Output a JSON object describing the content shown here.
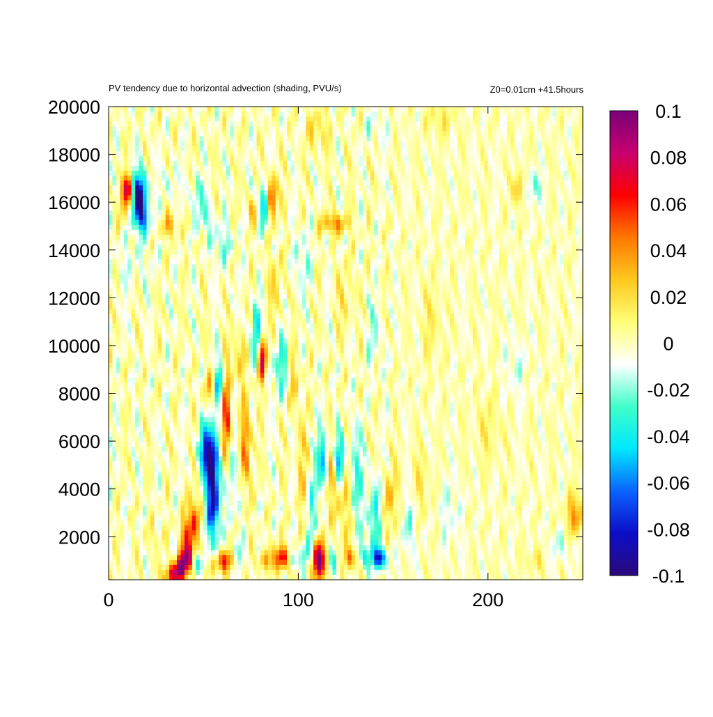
{
  "chart_data": {
    "type": "heatmap",
    "title": "PV tendency due to horizontal advection (shading, PVU/s)",
    "subtitle": "Z0=0.01cm   +41.5hours",
    "xlabel": "",
    "ylabel": "",
    "xlim": [
      0,
      250
    ],
    "ylim": [
      200,
      20000
    ],
    "xticks": [
      "0",
      "100",
      "200"
    ],
    "yticks": [
      "2000",
      "4000",
      "6000",
      "8000",
      "10000",
      "12000",
      "14000",
      "16000",
      "18000",
      "20000"
    ],
    "colorbar": {
      "range": [
        -0.1,
        0.1
      ],
      "ticks": [
        "0.1",
        "0.08",
        "0.06",
        "0.04",
        "0.02",
        "0",
        "-0.02",
        "-0.04",
        "-0.06",
        "-0.08",
        "-0.1"
      ],
      "colors": [
        "#2a0a7a",
        "#0c0cc8",
        "#0a64ff",
        "#00e8ff",
        "#3fffc8",
        "#ffffff",
        "#ffff78",
        "#ffc81e",
        "#ff7800",
        "#ff0000",
        "#c8006e",
        "#780078"
      ]
    },
    "grid": false,
    "blobs": [
      {
        "x": 10,
        "y": 16500,
        "sx": 2,
        "sy": 450,
        "v": 0.08
      },
      {
        "x": 16,
        "y": 16200,
        "sx": 3,
        "sy": 700,
        "v": -0.1
      },
      {
        "x": 18,
        "y": 15200,
        "sx": 2.5,
        "sy": 400,
        "v": -0.04
      },
      {
        "x": 8,
        "y": 15800,
        "sx": 3,
        "sy": 600,
        "v": 0.015
      },
      {
        "x": 32,
        "y": 15000,
        "sx": 3,
        "sy": 350,
        "v": 0.03
      },
      {
        "x": 33,
        "y": 16800,
        "sx": 2.5,
        "sy": 500,
        "v": -0.015
      },
      {
        "x": 47,
        "y": 16300,
        "sx": 2,
        "sy": 500,
        "v": -0.03
      },
      {
        "x": 82,
        "y": 15900,
        "sx": 2,
        "sy": 600,
        "v": -0.06
      },
      {
        "x": 86,
        "y": 16200,
        "sx": 1.8,
        "sy": 600,
        "v": 0.07
      },
      {
        "x": 76,
        "y": 15700,
        "sx": 2,
        "sy": 400,
        "v": 0.03
      },
      {
        "x": 119,
        "y": 15100,
        "sx": 5,
        "sy": 300,
        "v": 0.04
      },
      {
        "x": 110,
        "y": 19000,
        "sx": 4,
        "sy": 600,
        "v": 0.02
      },
      {
        "x": 216,
        "y": 16600,
        "sx": 2,
        "sy": 500,
        "v": 0.03
      },
      {
        "x": 224,
        "y": 16600,
        "sx": 2.5,
        "sy": 500,
        "v": -0.025
      },
      {
        "x": 51,
        "y": 15300,
        "sx": 3,
        "sy": 500,
        "v": -0.02
      },
      {
        "x": 60,
        "y": 14200,
        "sx": 4,
        "sy": 600,
        "v": -0.02
      },
      {
        "x": 12,
        "y": 13500,
        "sx": 8,
        "sy": 900,
        "v": -0.008
      },
      {
        "x": 140,
        "y": 19200,
        "sx": 4,
        "sy": 500,
        "v": -0.012
      },
      {
        "x": 175,
        "y": 19500,
        "sx": 5,
        "sy": 500,
        "v": 0.015
      },
      {
        "x": 81,
        "y": 9500,
        "sx": 1.5,
        "sy": 700,
        "v": 0.08
      },
      {
        "x": 78,
        "y": 10500,
        "sx": 2,
        "sy": 800,
        "v": -0.05
      },
      {
        "x": 91,
        "y": 9000,
        "sx": 2.5,
        "sy": 900,
        "v": -0.04
      },
      {
        "x": 68,
        "y": 9500,
        "sx": 3,
        "sy": 800,
        "v": 0.02
      },
      {
        "x": 96,
        "y": 8500,
        "sx": 3,
        "sy": 900,
        "v": 0.02
      },
      {
        "x": 55,
        "y": 4200,
        "sx": 2.5,
        "sy": 1600,
        "v": -0.1
      },
      {
        "x": 51,
        "y": 5600,
        "sx": 2.5,
        "sy": 700,
        "v": -0.06
      },
      {
        "x": 62,
        "y": 6800,
        "sx": 1.8,
        "sy": 1300,
        "v": 0.07
      },
      {
        "x": 58,
        "y": 8400,
        "sx": 2,
        "sy": 700,
        "v": -0.05
      },
      {
        "x": 72,
        "y": 5800,
        "sx": 2,
        "sy": 1300,
        "v": 0.05
      },
      {
        "x": 66,
        "y": 5000,
        "sx": 2.5,
        "sy": 1500,
        "v": -0.025
      },
      {
        "x": 54,
        "y": 8200,
        "sx": 2.5,
        "sy": 600,
        "v": 0.03
      },
      {
        "x": 45,
        "y": 2600,
        "sx": 2,
        "sy": 800,
        "v": 0.05
      },
      {
        "x": 41,
        "y": 2000,
        "sx": 2.5,
        "sy": 700,
        "v": 0.04
      },
      {
        "x": 38,
        "y": 700,
        "sx": 2,
        "sy": 350,
        "v": 0.1
      },
      {
        "x": 42,
        "y": 1100,
        "sx": 2,
        "sy": 400,
        "v": 0.07
      },
      {
        "x": 33,
        "y": 400,
        "sx": 2.5,
        "sy": 300,
        "v": 0.07
      },
      {
        "x": 48,
        "y": 900,
        "sx": 2.5,
        "sy": 300,
        "v": -0.035
      },
      {
        "x": 62,
        "y": 1000,
        "sx": 3,
        "sy": 300,
        "v": 0.06
      },
      {
        "x": 55,
        "y": 800,
        "sx": 2,
        "sy": 350,
        "v": 0.04
      },
      {
        "x": 68,
        "y": 1200,
        "sx": 2.5,
        "sy": 400,
        "v": -0.02
      },
      {
        "x": 91,
        "y": 1100,
        "sx": 2.5,
        "sy": 350,
        "v": 0.08
      },
      {
        "x": 82,
        "y": 1000,
        "sx": 2,
        "sy": 300,
        "v": 0.04
      },
      {
        "x": 97,
        "y": 1000,
        "sx": 2,
        "sy": 300,
        "v": -0.025
      },
      {
        "x": 111,
        "y": 1000,
        "sx": 2.5,
        "sy": 550,
        "v": 0.1
      },
      {
        "x": 104,
        "y": 1300,
        "sx": 2,
        "sy": 400,
        "v": -0.03
      },
      {
        "x": 119,
        "y": 1000,
        "sx": 2,
        "sy": 400,
        "v": -0.035
      },
      {
        "x": 127,
        "y": 1100,
        "sx": 2,
        "sy": 350,
        "v": 0.05
      },
      {
        "x": 143,
        "y": 1100,
        "sx": 2.5,
        "sy": 300,
        "v": -0.08
      },
      {
        "x": 135,
        "y": 1200,
        "sx": 2.5,
        "sy": 350,
        "v": -0.03
      },
      {
        "x": 113,
        "y": 5200,
        "sx": 2,
        "sy": 900,
        "v": -0.05
      },
      {
        "x": 122,
        "y": 5300,
        "sx": 2,
        "sy": 700,
        "v": -0.05
      },
      {
        "x": 117,
        "y": 4200,
        "sx": 2,
        "sy": 1200,
        "v": 0.03
      },
      {
        "x": 125,
        "y": 3500,
        "sx": 2,
        "sy": 1400,
        "v": 0.03
      },
      {
        "x": 108,
        "y": 3200,
        "sx": 2,
        "sy": 1300,
        "v": -0.025
      },
      {
        "x": 130,
        "y": 4500,
        "sx": 2.5,
        "sy": 1500,
        "v": -0.03
      },
      {
        "x": 102,
        "y": 5000,
        "sx": 2,
        "sy": 1500,
        "v": 0.02
      },
      {
        "x": 140,
        "y": 2800,
        "sx": 3,
        "sy": 1200,
        "v": -0.03
      },
      {
        "x": 149,
        "y": 3600,
        "sx": 3,
        "sy": 1000,
        "v": 0.025
      },
      {
        "x": 158,
        "y": 2500,
        "sx": 3,
        "sy": 900,
        "v": -0.02
      },
      {
        "x": 165,
        "y": 4200,
        "sx": 3,
        "sy": 1000,
        "v": 0.015
      },
      {
        "x": 180,
        "y": 3000,
        "sx": 4,
        "sy": 1000,
        "v": -0.012
      },
      {
        "x": 246,
        "y": 2900,
        "sx": 3,
        "sy": 600,
        "v": 0.04
      },
      {
        "x": 238,
        "y": 1600,
        "sx": 4,
        "sy": 400,
        "v": -0.015
      },
      {
        "x": 224,
        "y": 1000,
        "sx": 3,
        "sy": 350,
        "v": 0.015
      },
      {
        "x": 200,
        "y": 6500,
        "sx": 5,
        "sy": 1000,
        "v": 0.012
      },
      {
        "x": 215,
        "y": 9000,
        "sx": 4,
        "sy": 900,
        "v": -0.012
      },
      {
        "x": 170,
        "y": 11000,
        "sx": 4,
        "sy": 1200,
        "v": 0.012
      },
      {
        "x": 88,
        "y": 12500,
        "sx": 3,
        "sy": 900,
        "v": 0.018
      },
      {
        "x": 102,
        "y": 13500,
        "sx": 3,
        "sy": 900,
        "v": -0.018
      },
      {
        "x": 125,
        "y": 12000,
        "sx": 3,
        "sy": 1000,
        "v": 0.015
      },
      {
        "x": 140,
        "y": 10500,
        "sx": 3,
        "sy": 1000,
        "v": -0.015
      },
      {
        "x": 24,
        "y": 2000,
        "sx": 3,
        "sy": 400,
        "v": 0.012
      }
    ]
  }
}
